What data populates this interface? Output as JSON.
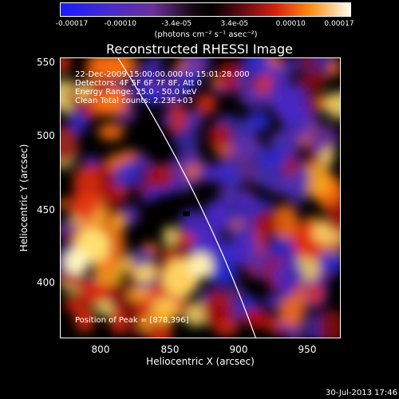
{
  "chart_data": {
    "type": "heatmap",
    "title": "Reconstructed RHESSI Image",
    "xlabel": "Heliocentric X (arcsec)",
    "ylabel": "Heliocentric Y (arcsec)",
    "xlim": [
      770,
      962
    ],
    "ylim": [
      360,
      553
    ],
    "xticks": [
      "800",
      "850",
      "900",
      "950"
    ],
    "yticks": [
      "400",
      "450",
      "500",
      "550"
    ],
    "colorbar": {
      "range": [
        -0.00017,
        0.00017
      ],
      "tick_labels": [
        "-0.00017",
        "-0.00010",
        "-3.4e-05",
        "3.4e-05",
        "0.00010",
        "0.00017"
      ],
      "unit": "(photons cm⁻² s⁻¹ asec⁻²)"
    },
    "annotations": {
      "time_range": "22-Dec-2009 15:00:00.000 to 15:01:28.000",
      "detectors": "Detectors: 4F 5F 6F 7F 8F, Att 0",
      "energy_range": "Energy Range: 25.0 - 50.0 keV",
      "clean": "Clean     Total counts: 2.23E+03",
      "peak": "Position of Peak = [878,396]"
    },
    "peak_position": [
      878,
      396
    ],
    "total_counts": 2230,
    "colors": {
      "background": "#000000",
      "text": "#ffffff"
    }
  },
  "footer": {
    "date": "30-Jul-2013 17:46"
  }
}
